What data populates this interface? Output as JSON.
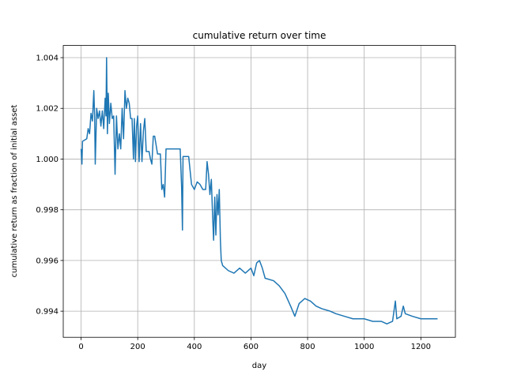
{
  "chart_data": {
    "type": "line",
    "title": "cumulative return over time",
    "x_label": "day",
    "y_label": "cumulative return as fraction of initial asset",
    "x": [
      0,
      3,
      5,
      20,
      25,
      30,
      35,
      40,
      45,
      48,
      50,
      55,
      60,
      65,
      70,
      75,
      80,
      85,
      88,
      90,
      93,
      96,
      100,
      105,
      110,
      115,
      120,
      125,
      130,
      135,
      140,
      145,
      150,
      155,
      160,
      165,
      170,
      175,
      180,
      185,
      188,
      192,
      196,
      200,
      205,
      210,
      215,
      220,
      225,
      230,
      240,
      245,
      250,
      255,
      260,
      270,
      280,
      285,
      290,
      295,
      300,
      330,
      350,
      355,
      358,
      360,
      380,
      390,
      400,
      410,
      420,
      430,
      440,
      445,
      450,
      455,
      460,
      465,
      468,
      472,
      476,
      480,
      484,
      488,
      492,
      495,
      500,
      520,
      540,
      560,
      580,
      600,
      610,
      620,
      630,
      640,
      650,
      680,
      700,
      720,
      740,
      755,
      770,
      790,
      810,
      830,
      850,
      880,
      900,
      930,
      960,
      1000,
      1030,
      1060,
      1080,
      1100,
      1110,
      1115,
      1130,
      1138,
      1145,
      1170,
      1200,
      1230,
      1259
    ],
    "series": [
      {
        "name": "cumulative return",
        "color": "#1f77b4",
        "values": [
          1.0004,
          0.9998,
          1.0007,
          1.0008,
          1.0012,
          1.001,
          1.0018,
          1.0015,
          1.0027,
          1.0016,
          0.9998,
          1.002,
          1.0016,
          1.0019,
          1.0013,
          1.0019,
          1.0012,
          1.0024,
          1.0017,
          1.004,
          1.001,
          1.0026,
          1.0014,
          1.0022,
          1.0016,
          1.0017,
          0.9994,
          1.0017,
          1.0004,
          1.001,
          1.0004,
          1.002,
          1.0008,
          1.0027,
          1.002,
          1.0024,
          1.0022,
          1.0016,
          1.0016,
          1.0,
          1.0016,
          0.9999,
          1.0013,
          1.0017,
          0.9999,
          1.0014,
          0.9999,
          1.0011,
          1.0016,
          1.0003,
          1.0003,
          1.0,
          0.9998,
          1.0009,
          1.0009,
          1.0002,
          1.0002,
          0.9988,
          0.999,
          0.9985,
          1.0004,
          1.0004,
          1.0004,
          0.9989,
          0.9972,
          1.0001,
          1.0001,
          0.999,
          0.9988,
          0.9991,
          0.999,
          0.9988,
          0.9988,
          0.9999,
          0.9994,
          0.9986,
          0.9992,
          0.9976,
          0.9968,
          0.9985,
          0.997,
          0.9986,
          0.9978,
          0.9988,
          0.9968,
          0.996,
          0.9958,
          0.9956,
          0.9955,
          0.9957,
          0.9955,
          0.9957,
          0.9954,
          0.9959,
          0.996,
          0.9957,
          0.9953,
          0.9952,
          0.995,
          0.9947,
          0.9942,
          0.9938,
          0.9943,
          0.9945,
          0.9944,
          0.9942,
          0.9941,
          0.994,
          0.9939,
          0.9938,
          0.9937,
          0.9937,
          0.9936,
          0.9936,
          0.9935,
          0.9936,
          0.9944,
          0.9937,
          0.9938,
          0.9942,
          0.9939,
          0.9938,
          0.9937,
          0.9937,
          0.9937
        ]
      }
    ],
    "xlim": [
      -63,
      1322
    ],
    "xticks": [
      0,
      200,
      400,
      600,
      800,
      1000,
      1200
    ],
    "ylim": [
      0.99297,
      1.00448
    ],
    "yticks": [
      0.994,
      0.996,
      0.998,
      {
        "value": 1,
        "label": "1.000"
      },
      1.002,
      1.004
    ],
    "grid": true
  }
}
